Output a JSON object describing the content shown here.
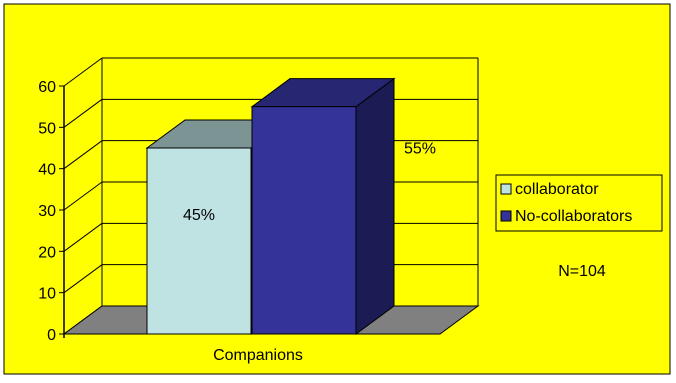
{
  "chart_data": {
    "type": "bar",
    "categories": [
      "Companions"
    ],
    "series": [
      {
        "name": "collaborator",
        "values": [
          45
        ],
        "label": "45%",
        "color": "#bfe3e3"
      },
      {
        "name": "No-collaborators",
        "values": [
          55
        ],
        "label": "55%",
        "color": "#333399"
      }
    ],
    "ylim": [
      0,
      60
    ],
    "yticks": [
      "0",
      "10",
      "20",
      "30",
      "40",
      "50",
      "60"
    ],
    "xlabel": "Companions",
    "annotation": "N=104",
    "legend_position": "right",
    "grid": true,
    "three_d": true,
    "colors": {
      "background": "#ffff00",
      "floor": "#808080",
      "gridline": "#000000"
    }
  }
}
